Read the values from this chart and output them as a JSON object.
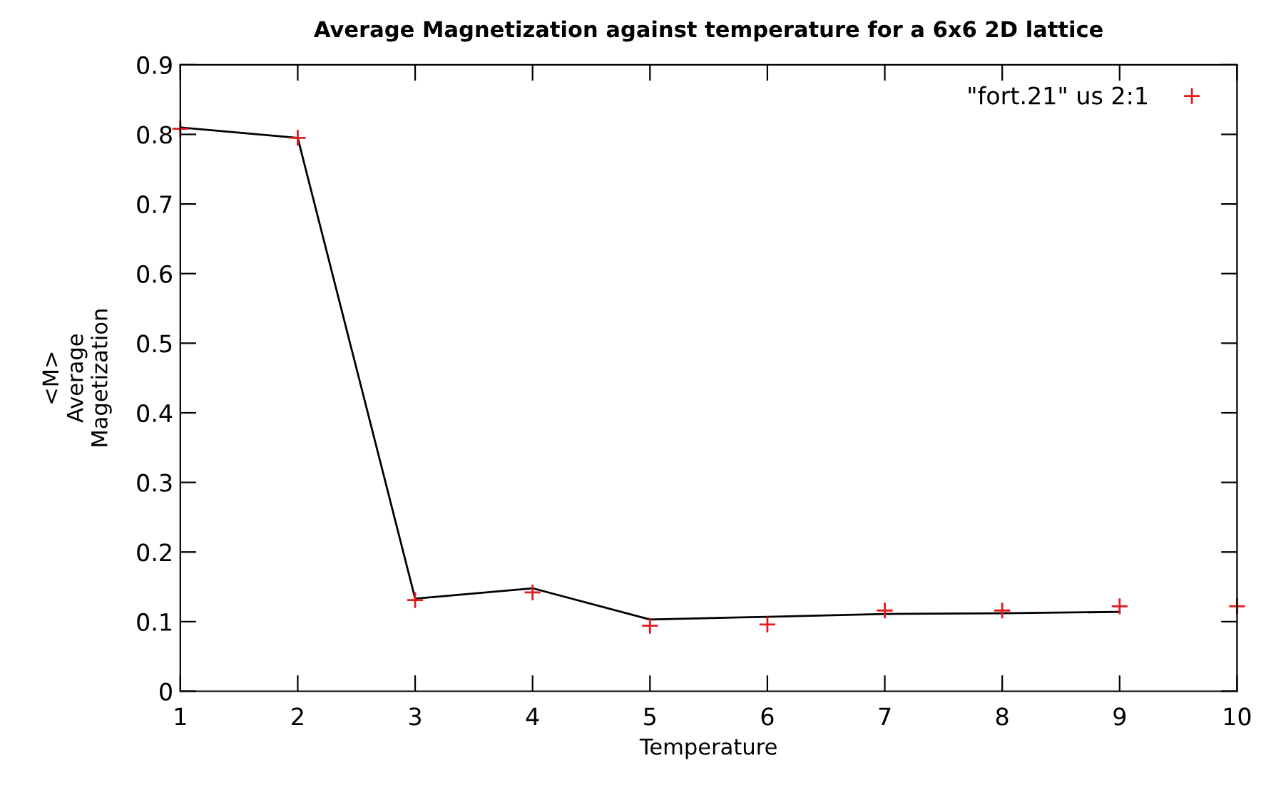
{
  "chart_data": {
    "type": "scatter",
    "title": "Average Magnetization against temperature for a 6x6 2D lattice",
    "xlabel": "Temperature",
    "ylabel": "<M>\nAverage\nMagetization",
    "series": [
      {
        "type": "line",
        "color": "#000000",
        "marker": "none",
        "x": [
          1,
          2,
          3,
          4,
          5,
          6,
          7,
          8,
          9
        ],
        "values": [
          0.81,
          0.795,
          0.133,
          0.148,
          0.103,
          0.107,
          0.111,
          0.112,
          0.114
        ]
      },
      {
        "name": "\"fort.21\" us 2:1",
        "color": "#e31a1c",
        "marker": "cross",
        "x": [
          1,
          2,
          3,
          4,
          5,
          6,
          7,
          8,
          9,
          10
        ],
        "values": [
          0.808,
          0.795,
          0.131,
          0.142,
          0.094,
          0.096,
          0.116,
          0.116,
          0.122,
          0.122
        ]
      }
    ],
    "xlim": [
      1,
      10
    ],
    "xticks": [
      1,
      2,
      3,
      4,
      5,
      6,
      7,
      8,
      9,
      10
    ],
    "ylim": [
      0,
      0.9
    ],
    "yticks": [
      0,
      0.1,
      0.2,
      0.3,
      0.4,
      0.5,
      0.6,
      0.7,
      0.8,
      0.9
    ],
    "grid": false,
    "legend": "top right"
  }
}
